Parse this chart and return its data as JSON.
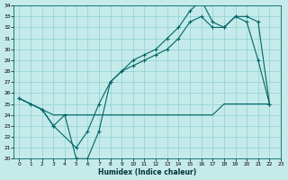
{
  "xlabel": "Humidex (Indice chaleur)",
  "xlim": [
    -0.5,
    23
  ],
  "ylim": [
    20,
    34
  ],
  "yticks": [
    20,
    21,
    22,
    23,
    24,
    25,
    26,
    27,
    28,
    29,
    30,
    31,
    32,
    33,
    34
  ],
  "xticks": [
    0,
    1,
    2,
    3,
    4,
    5,
    6,
    7,
    8,
    9,
    10,
    11,
    12,
    13,
    14,
    15,
    16,
    17,
    18,
    19,
    20,
    21,
    22,
    23
  ],
  "bg_color": "#c5eaea",
  "line_color": "#006666",
  "grid_color": "#80cccc",
  "line1_x": [
    0,
    1,
    2,
    3,
    4,
    5,
    6,
    7,
    8,
    9,
    10,
    11,
    12,
    13,
    14,
    15,
    16,
    17,
    18,
    19,
    20,
    21,
    22
  ],
  "line1_y": [
    25.5,
    25,
    24.5,
    23,
    24,
    20,
    20,
    22.5,
    27,
    28,
    29,
    29.5,
    30,
    31,
    32,
    33.5,
    34.5,
    32.5,
    32,
    33,
    32.5,
    29,
    25
  ],
  "line2_x": [
    0,
    2,
    3,
    5,
    6,
    7,
    8,
    9,
    10,
    11,
    12,
    13,
    14,
    15,
    16,
    17,
    18,
    19,
    20,
    21,
    22
  ],
  "line2_y": [
    25.5,
    24.5,
    23,
    21,
    22.5,
    25,
    27,
    28,
    28.5,
    29,
    29.5,
    30,
    31,
    32.5,
    33,
    32,
    32,
    33,
    33,
    32.5,
    25
  ],
  "line3_x": [
    0,
    2,
    3,
    5,
    6,
    7,
    8,
    9,
    10,
    11,
    12,
    13,
    14,
    15,
    16,
    17,
    18,
    19,
    20,
    21,
    22
  ],
  "line3_y": [
    25.5,
    24.5,
    24,
    24,
    24,
    24,
    24,
    24,
    24,
    24,
    24,
    24,
    24,
    24,
    24,
    24,
    25,
    25,
    25,
    25,
    25
  ]
}
